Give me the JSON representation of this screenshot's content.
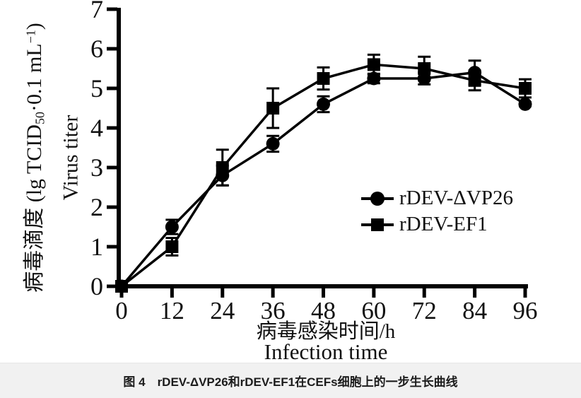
{
  "figure": {
    "caption": "图 4　rDEV-ΔVP26和rDEV-EF1在CEFs细胞上的一步生长曲线"
  },
  "axes": {
    "y_label_zh": "病毒滴度",
    "y_formula_pre": " (lg TCID",
    "y_formula_sub": "50",
    "y_formula_mid": "·0.1 mL",
    "y_formula_sup": "−1",
    "y_formula_post": ")",
    "y_label_en": "Virus titer",
    "x_label_zh": "病毒感染时间/h",
    "x_label_en": "Infection time"
  },
  "legend": {
    "items": [
      {
        "label": "rDEV-ΔVP26",
        "marker": "circle"
      },
      {
        "label": "rDEV-EF1",
        "marker": "square"
      }
    ],
    "position": "right-middle"
  },
  "chart_data": {
    "type": "line",
    "title": "图 4　rDEV-ΔVP26和rDEV-EF1在CEFs细胞上的一步生长曲线",
    "xlabel": "病毒感染时间/h Infection time",
    "ylabel": "病毒滴度 (lg TCID50·0.1 mL−1) Virus titer",
    "x": [
      0,
      12,
      24,
      36,
      48,
      60,
      72,
      84,
      96
    ],
    "xticks": [
      0,
      12,
      24,
      36,
      48,
      60,
      72,
      84,
      96
    ],
    "yticks": [
      0,
      1,
      2,
      3,
      4,
      5,
      6,
      7
    ],
    "ylim": [
      0,
      7
    ],
    "xlim": [
      0,
      96
    ],
    "grid": false,
    "line_color": "#000000",
    "series": [
      {
        "name": "rDEV-ΔVP26",
        "marker": "circle",
        "values": [
          0,
          1.5,
          2.8,
          3.6,
          4.6,
          5.25,
          5.25,
          5.4,
          4.6
        ],
        "errors": [
          0,
          0.18,
          0.25,
          0.2,
          0.2,
          0.12,
          0.15,
          0.3,
          0.05
        ]
      },
      {
        "name": "rDEV-EF1",
        "marker": "square",
        "values": [
          0,
          1.0,
          3.0,
          4.5,
          5.25,
          5.6,
          5.5,
          5.2,
          5.0
        ],
        "errors": [
          0,
          0.22,
          0.45,
          0.5,
          0.28,
          0.25,
          0.3,
          0.25,
          0.23
        ]
      }
    ]
  },
  "style": {
    "background": "#ffffff",
    "caption_band_bg": "#f1f1f1",
    "ink": "#000000"
  }
}
